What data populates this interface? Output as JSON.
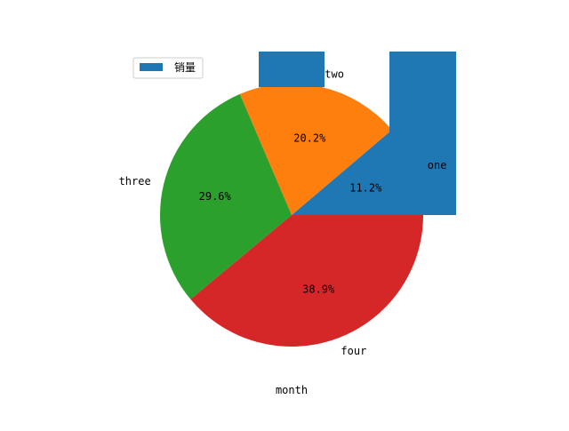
{
  "chart_data": {
    "type": "pie",
    "categories": [
      "one",
      "two",
      "three",
      "four"
    ],
    "series": [
      {
        "name": "销量",
        "values": [
          11.2,
          20.2,
          29.6,
          38.9
        ]
      }
    ],
    "slice_labels": [
      "one",
      "two",
      "three",
      "four"
    ],
    "percent_labels": [
      "11.2%",
      "20.2%",
      "29.6%",
      "38.9%"
    ],
    "colors": [
      "#1f77b4",
      "#ff7f0e",
      "#2ca02c",
      "#d62728"
    ],
    "xlabel": "month",
    "legend": {
      "entries": [
        "销量"
      ],
      "placement": "top-left"
    },
    "grid": false
  }
}
